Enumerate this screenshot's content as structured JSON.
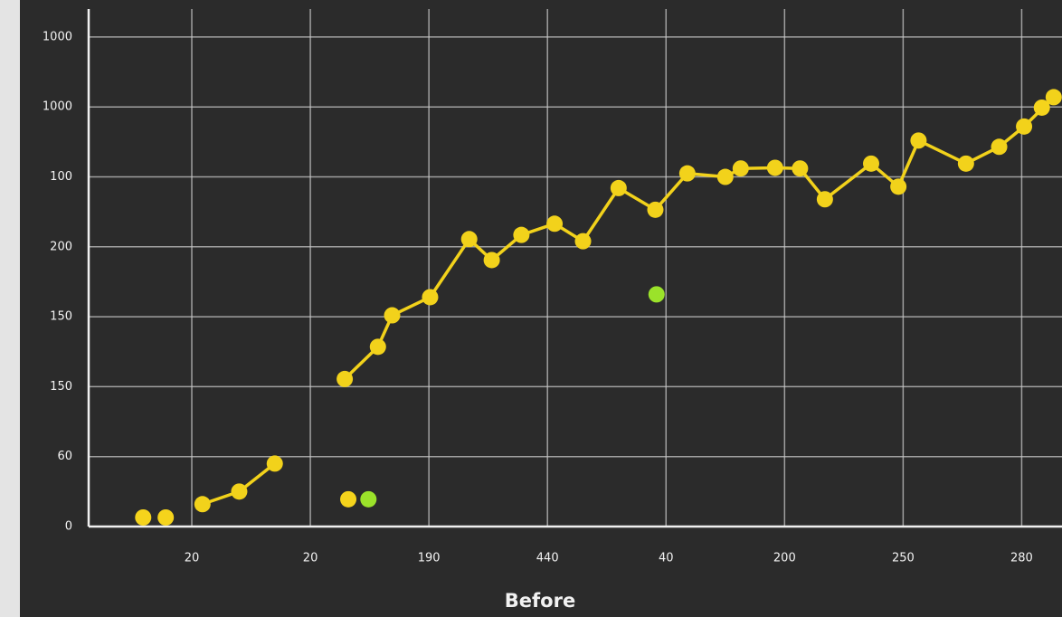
{
  "chart_data": {
    "type": "line",
    "x_label": "Before",
    "xlim": [
      0.13,
      8.34
    ],
    "ylim": [
      0,
      7.4
    ],
    "xticks": [
      {
        "value": 1,
        "label": "20"
      },
      {
        "value": 2,
        "label": "20"
      },
      {
        "value": 3,
        "label": "190"
      },
      {
        "value": 4,
        "label": "440"
      },
      {
        "value": 5,
        "label": "40"
      },
      {
        "value": 6,
        "label": "200"
      },
      {
        "value": 7,
        "label": "250"
      },
      {
        "value": 8,
        "label": "280"
      }
    ],
    "yticks": [
      0,
      {
        "value": 1,
        "label": "60"
      },
      {
        "value": 2,
        "label": "150"
      },
      {
        "value": 3,
        "label": "150"
      },
      {
        "value": 4,
        "label": "200"
      },
      {
        "value": 5,
        "label": "100"
      },
      {
        "value": 6,
        "label": "1000"
      },
      {
        "value": 7,
        "label": "1000"
      }
    ],
    "grid": true,
    "series": [
      {
        "color": "#f2d21b",
        "markers": true,
        "line": true,
        "x": [
          1.09,
          1.4,
          1.7,
          null,
          2.29,
          2.57,
          2.69,
          3.01,
          3.34,
          3.53,
          3.78,
          4.06,
          4.3,
          4.6,
          4.91,
          5.18,
          5.5,
          5.63,
          5.92,
          6.13,
          6.34,
          6.73,
          6.96,
          7.13,
          7.53,
          7.81,
          8.02,
          8.27
        ],
        "values": [
          0.32,
          0.5,
          0.9,
          null,
          2.11,
          2.57,
          3.02,
          3.28,
          4.11,
          3.81,
          4.17,
          4.33,
          4.08,
          4.84,
          4.53,
          5.05,
          5.0,
          5.12,
          5.13,
          5.12,
          4.68,
          5.19,
          4.86,
          5.52,
          5.19,
          5.43,
          5.72,
          6.14
        ]
      },
      {
        "color": "#f5d41c",
        "markers": true,
        "line": false,
        "x": [
          0.59,
          0.78,
          2.32,
          8.17
        ],
        "values": [
          0.13,
          0.13,
          0.39,
          5.99
        ]
      },
      {
        "color": "#9be22a",
        "markers": true,
        "line": false,
        "x": [
          2.49,
          4.92
        ],
        "values": [
          0.39,
          3.32
        ]
      }
    ]
  }
}
